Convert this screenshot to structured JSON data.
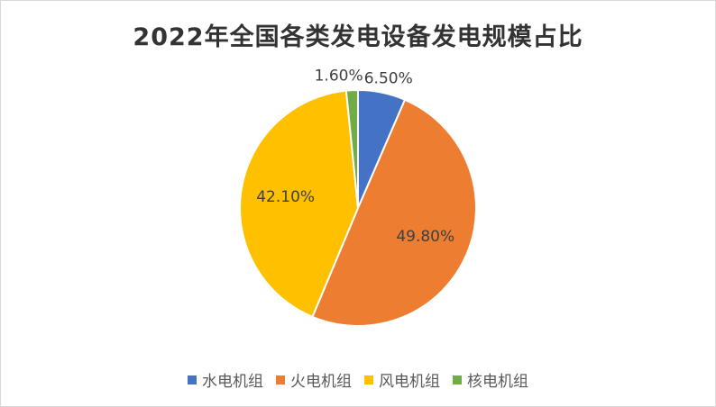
{
  "chart_data": {
    "type": "pie",
    "title": "2022年全国各类发电设备发电规模占比",
    "categories": [
      "水电机组",
      "火电机组",
      "风电机组",
      "核电机组"
    ],
    "values": [
      6.5,
      49.8,
      42.1,
      1.6
    ],
    "labels": [
      "6.50%",
      "49.80%",
      "42.10%",
      "1.60%"
    ],
    "colors": [
      "#4472C4",
      "#ED7D31",
      "#FFC000",
      "#70AD47"
    ],
    "legend_position": "bottom",
    "start_angle": "12 o'clock, clockwise"
  }
}
